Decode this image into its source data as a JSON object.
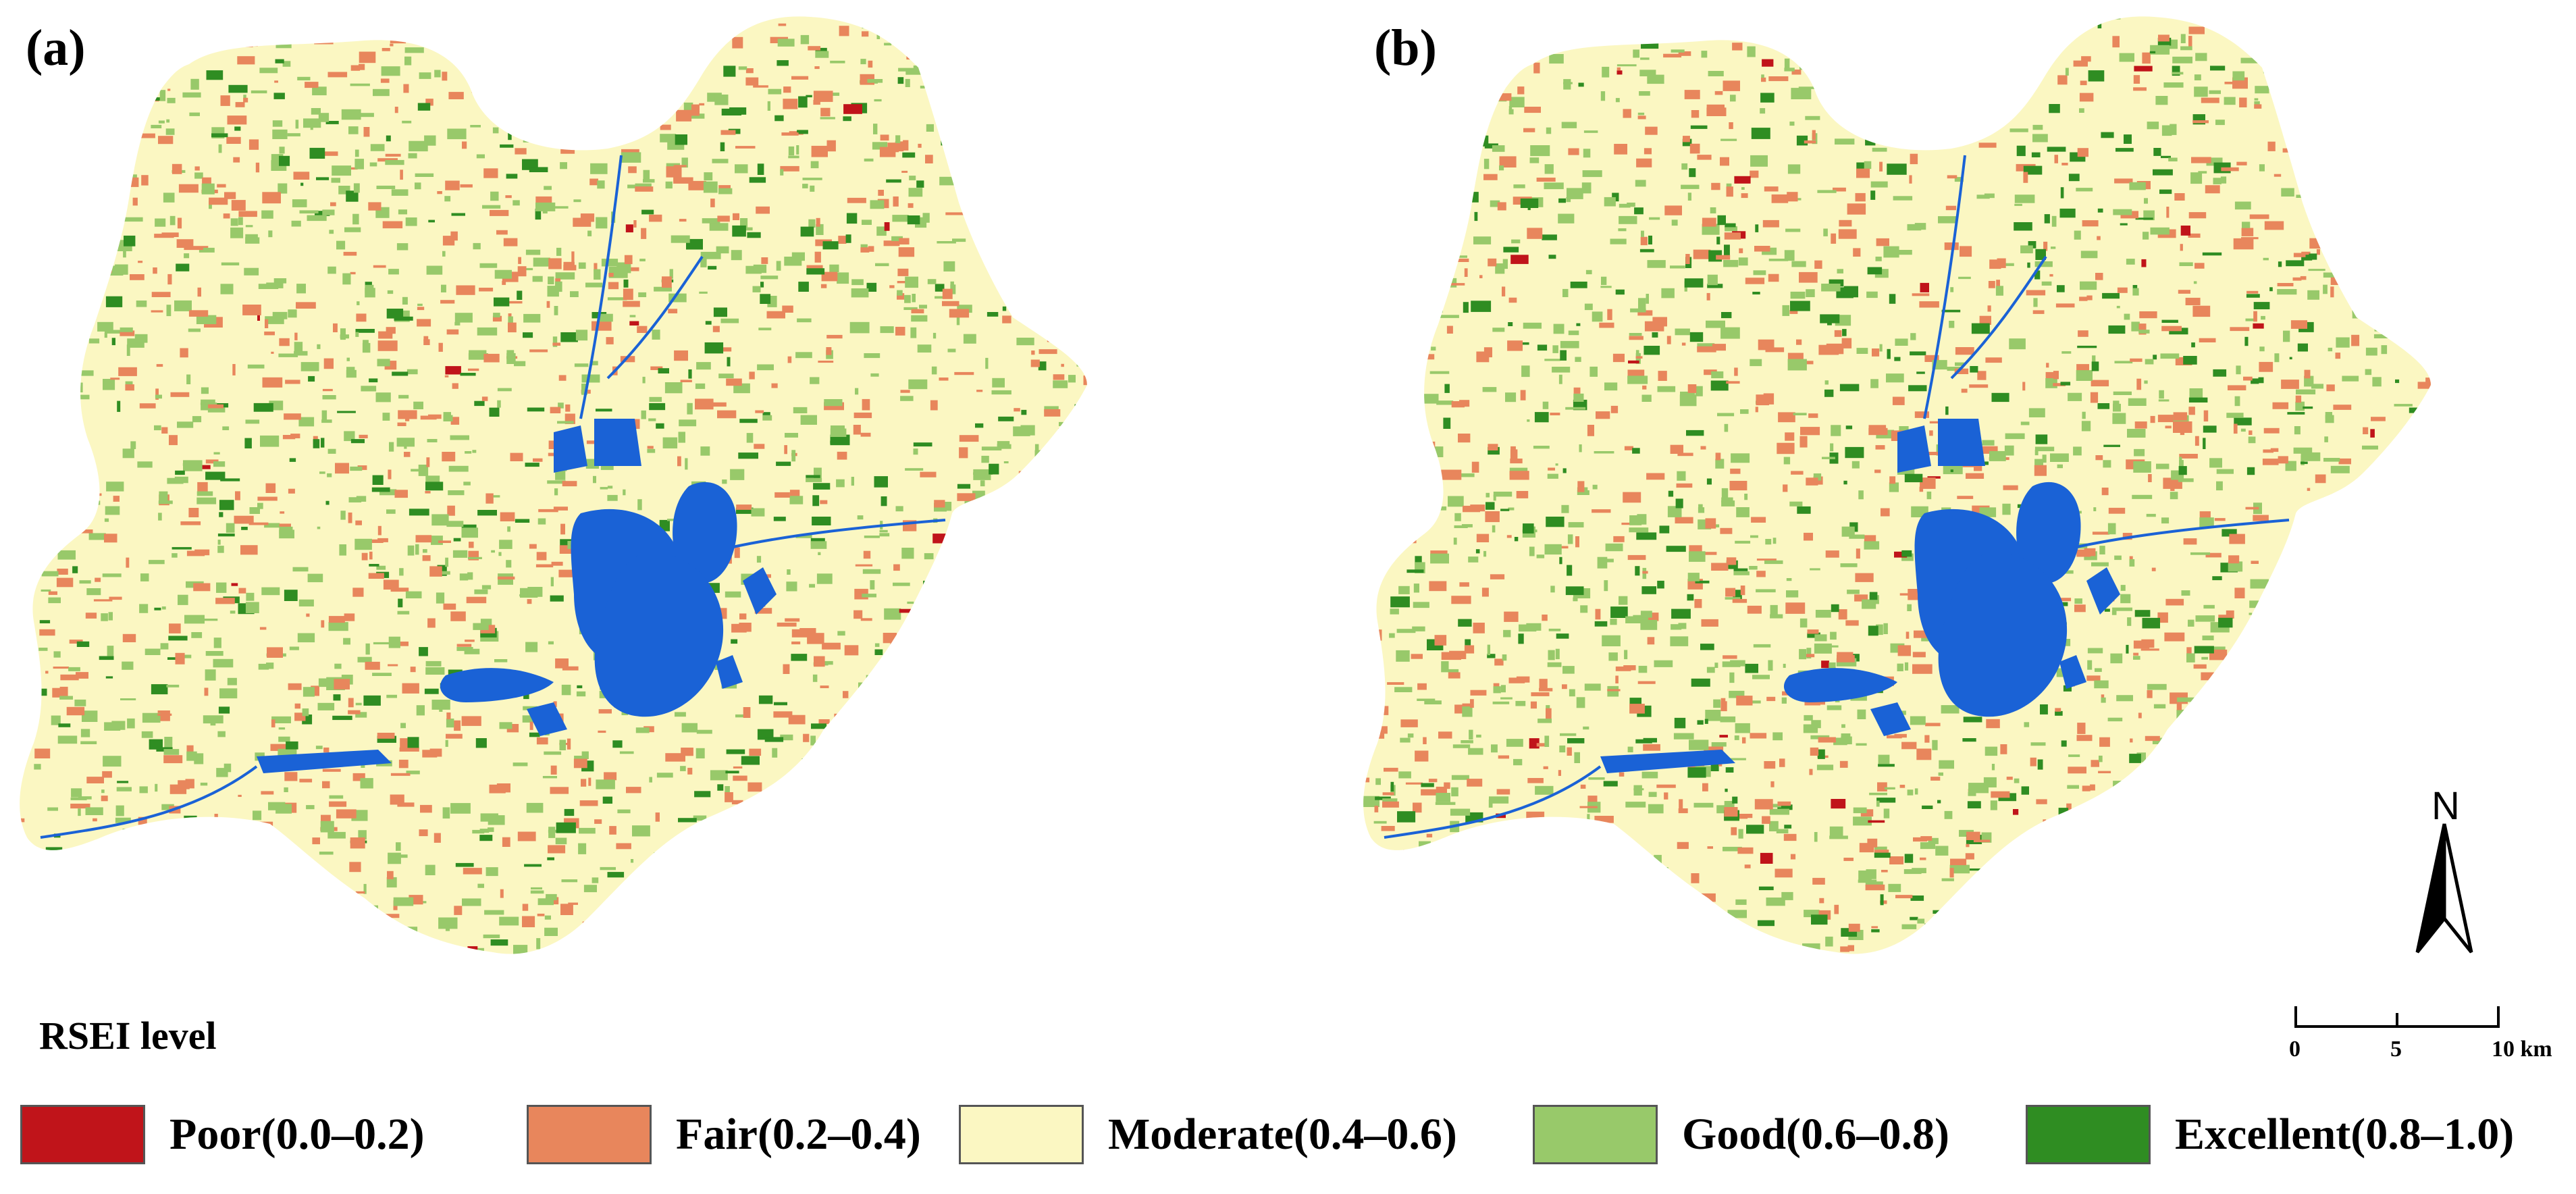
{
  "panels": [
    {
      "label": "(a)",
      "name": "map-panel-a"
    },
    {
      "label": "(b)",
      "name": "map-panel-b"
    }
  ],
  "legend": {
    "title": "RSEI level",
    "items": [
      {
        "label": "Poor(0.0–0.2)",
        "color": "#c0141a"
      },
      {
        "label": "Fair(0.2–0.4)",
        "color": "#e8865c"
      },
      {
        "label": "Moderate(0.4–0.6)",
        "color": "#fbf7c2"
      },
      {
        "label": "Good(0.6–0.8)",
        "color": "#98c96a"
      },
      {
        "label": "Excellent(0.8–1.0)",
        "color": "#2f8d22"
      }
    ]
  },
  "water_color": "#1a62d6",
  "north_arrow": {
    "label": "N"
  },
  "scale_bar": {
    "ticks": [
      "0",
      "5",
      "10 km"
    ]
  }
}
